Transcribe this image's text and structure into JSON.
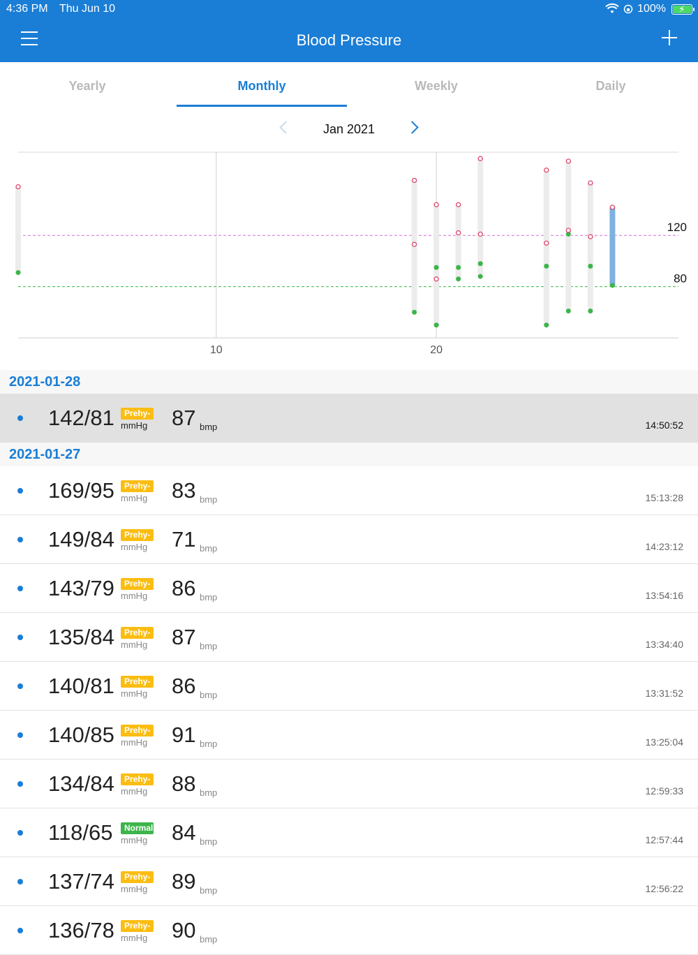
{
  "status_bar": {
    "time": "4:36 PM",
    "date": "Thu Jun 10",
    "battery": "100%"
  },
  "nav": {
    "title": "Blood Pressure",
    "menu_icon": "hamburger-icon",
    "add_icon": "plus-icon"
  },
  "tabs": [
    {
      "label": "Yearly",
      "active": false
    },
    {
      "label": "Monthly",
      "active": true
    },
    {
      "label": "Weekly",
      "active": false
    },
    {
      "label": "Daily",
      "active": false
    }
  ],
  "month_nav": {
    "label": "Jan 2021"
  },
  "colors": {
    "accent": "#1a7ed6",
    "systolic": "#e0456b",
    "diastolic": "#3cb54a",
    "prehy_badge": "#fbbd12",
    "normal_badge": "#3cb54a",
    "selected_bar": "#7fb2de"
  },
  "chart_data": {
    "type": "range-bar",
    "x_ticks": [
      "10",
      "20"
    ],
    "ref_lines": [
      {
        "value": 120,
        "label": "120",
        "color": "#d46bd6"
      },
      {
        "value": 80,
        "label": "80",
        "color": "#3cb54a"
      }
    ],
    "y_range": [
      40,
      185
    ],
    "x_range": [
      1,
      31
    ],
    "days": [
      {
        "day": 1,
        "sys": [
          158
        ],
        "dia": [
          91
        ]
      },
      {
        "day": 19,
        "sys": [
          163,
          113
        ],
        "dia": [
          60
        ]
      },
      {
        "day": 20,
        "sys": [
          144,
          86
        ],
        "dia": [
          95,
          50
        ]
      },
      {
        "day": 21,
        "sys": [
          144,
          122
        ],
        "dia": [
          95,
          86
        ]
      },
      {
        "day": 22,
        "sys": [
          180,
          121
        ],
        "dia": [
          98,
          88
        ]
      },
      {
        "day": 25,
        "sys": [
          171,
          114
        ],
        "dia": [
          96,
          50
        ]
      },
      {
        "day": 26,
        "sys": [
          178,
          124
        ],
        "dia": [
          121,
          61
        ]
      },
      {
        "day": 27,
        "sys": [
          161,
          119
        ],
        "dia": [
          96,
          61
        ]
      },
      {
        "day": 28,
        "sys": [
          142
        ],
        "dia": [
          81
        ],
        "selected": true
      }
    ]
  },
  "sections": [
    {
      "date": "2021-01-28",
      "rows": [
        {
          "bp": "142/81",
          "badge": "Prehy-",
          "badge_type": "prehy",
          "unit": "mmHg",
          "pulse": "87",
          "pulse_unit": "bmp",
          "time": "14:50:52",
          "selected": true
        }
      ]
    },
    {
      "date": "2021-01-27",
      "rows": [
        {
          "bp": "169/95",
          "badge": "Prehy-",
          "badge_type": "prehy",
          "unit": "mmHg",
          "pulse": "83",
          "pulse_unit": "bmp",
          "time": "15:13:28"
        },
        {
          "bp": "149/84",
          "badge": "Prehy-",
          "badge_type": "prehy",
          "unit": "mmHg",
          "pulse": "71",
          "pulse_unit": "bmp",
          "time": "14:23:12"
        },
        {
          "bp": "143/79",
          "badge": "Prehy-",
          "badge_type": "prehy",
          "unit": "mmHg",
          "pulse": "86",
          "pulse_unit": "bmp",
          "time": "13:54:16"
        },
        {
          "bp": "135/84",
          "badge": "Prehy-",
          "badge_type": "prehy",
          "unit": "mmHg",
          "pulse": "87",
          "pulse_unit": "bmp",
          "time": "13:34:40"
        },
        {
          "bp": "140/81",
          "badge": "Prehy-",
          "badge_type": "prehy",
          "unit": "mmHg",
          "pulse": "86",
          "pulse_unit": "bmp",
          "time": "13:31:52"
        },
        {
          "bp": "140/85",
          "badge": "Prehy-",
          "badge_type": "prehy",
          "unit": "mmHg",
          "pulse": "91",
          "pulse_unit": "bmp",
          "time": "13:25:04"
        },
        {
          "bp": "134/84",
          "badge": "Prehy-",
          "badge_type": "prehy",
          "unit": "mmHg",
          "pulse": "88",
          "pulse_unit": "bmp",
          "time": "12:59:33"
        },
        {
          "bp": "118/65",
          "badge": "Normal",
          "badge_type": "normal",
          "unit": "mmHg",
          "pulse": "84",
          "pulse_unit": "bmp",
          "time": "12:57:44"
        },
        {
          "bp": "137/74",
          "badge": "Prehy-",
          "badge_type": "prehy",
          "unit": "mmHg",
          "pulse": "89",
          "pulse_unit": "bmp",
          "time": "12:56:22"
        },
        {
          "bp": "136/78",
          "badge": "Prehy-",
          "badge_type": "prehy",
          "unit": "mmHg",
          "pulse": "90",
          "pulse_unit": "bmp",
          "time": ""
        }
      ]
    }
  ]
}
